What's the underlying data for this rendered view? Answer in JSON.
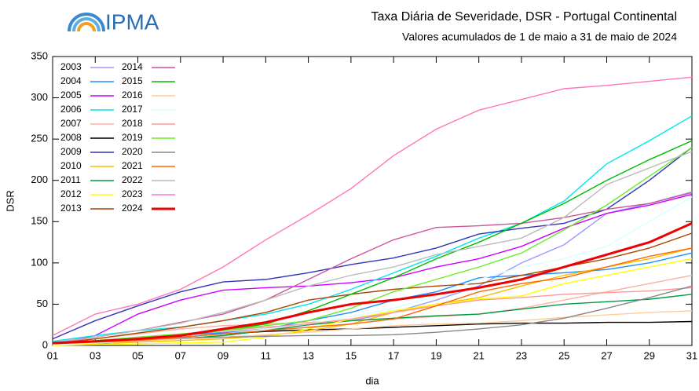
{
  "logo": "IPMA",
  "chart_data": {
    "type": "line",
    "title": "Taxa Diária de Severidade, DSR - Portugal Continental",
    "subtitle": "Valores acumulados de  1 de maio a 31 de maio de 2024",
    "xlabel": "dia",
    "ylabel": "DSR",
    "x": [
      1,
      3,
      5,
      7,
      9,
      11,
      13,
      15,
      17,
      19,
      21,
      23,
      25,
      27,
      29,
      31
    ],
    "xlim": [
      1,
      31
    ],
    "xticks": [
      {
        "value": 1,
        "label": "01"
      },
      {
        "value": 3,
        "label": "03"
      },
      {
        "value": 5,
        "label": "05"
      },
      {
        "value": 7,
        "label": "07"
      },
      {
        "value": 9,
        "label": "09"
      },
      {
        "value": 11,
        "label": "11"
      },
      {
        "value": 13,
        "label": "13"
      },
      {
        "value": 15,
        "label": "15"
      },
      {
        "value": 17,
        "label": "17"
      },
      {
        "value": 19,
        "label": "19"
      },
      {
        "value": 21,
        "label": "21"
      },
      {
        "value": 23,
        "label": "23"
      },
      {
        "value": 25,
        "label": "25"
      },
      {
        "value": 27,
        "label": "27"
      },
      {
        "value": 29,
        "label": "29"
      },
      {
        "value": 31,
        "label": "31"
      }
    ],
    "ylim": [
      0,
      350
    ],
    "yticks": [
      0,
      50,
      100,
      150,
      200,
      250,
      300,
      350
    ],
    "grid": false,
    "series": [
      {
        "name": "2003",
        "color": "#9a9aff",
        "values": [
          2,
          5,
          8,
          12,
          16,
          20,
          25,
          30,
          40,
          55,
          72,
          100,
          122,
          160,
          172,
          186
        ]
      },
      {
        "name": "2004",
        "color": "#1e90ff",
        "values": [
          2,
          5,
          10,
          13,
          15,
          20,
          30,
          40,
          55,
          65,
          82,
          85,
          88,
          92,
          100,
          112
        ]
      },
      {
        "name": "2005",
        "color": "#cc00ff",
        "values": [
          2,
          12,
          38,
          55,
          67,
          70,
          72,
          76,
          82,
          95,
          105,
          120,
          142,
          160,
          170,
          183
        ]
      },
      {
        "name": "2006",
        "color": "#00e5ee",
        "values": [
          5,
          12,
          18,
          22,
          30,
          38,
          50,
          68,
          88,
          108,
          130,
          148,
          175,
          220,
          248,
          278
        ]
      },
      {
        "name": "2007",
        "color": "#ffb0a0",
        "values": [
          3,
          8,
          14,
          20,
          24,
          26,
          28,
          30,
          32,
          35,
          38,
          45,
          55,
          65,
          75,
          85
        ]
      },
      {
        "name": "2008",
        "color": "#000000",
        "values": [
          1,
          3,
          6,
          10,
          14,
          17,
          19,
          20,
          22,
          24,
          26,
          27,
          27,
          28,
          28,
          29
        ]
      },
      {
        "name": "2009",
        "color": "#3333bb",
        "values": [
          8,
          30,
          48,
          65,
          77,
          80,
          88,
          98,
          106,
          118,
          135,
          142,
          148,
          165,
          200,
          240
        ]
      },
      {
        "name": "2010",
        "color": "#ffbb00",
        "values": [
          1,
          2,
          4,
          6,
          8,
          12,
          18,
          26,
          40,
          50,
          58,
          72,
          85,
          95,
          105,
          118
        ]
      },
      {
        "name": "2011",
        "color": "#009944",
        "values": [
          2,
          4,
          6,
          8,
          12,
          18,
          25,
          30,
          33,
          36,
          38,
          44,
          50,
          53,
          56,
          62
        ]
      },
      {
        "name": "2012",
        "color": "#ffff00",
        "values": [
          0,
          1,
          2,
          3,
          4,
          10,
          20,
          32,
          42,
          50,
          56,
          60,
          75,
          85,
          95,
          105
        ]
      },
      {
        "name": "2013",
        "color": "#aa4400",
        "values": [
          2,
          8,
          15,
          22,
          30,
          40,
          55,
          62,
          68,
          72,
          75,
          85,
          95,
          105,
          118,
          136
        ]
      },
      {
        "name": "2014",
        "color": "#cc5599",
        "values": [
          3,
          10,
          18,
          28,
          38,
          55,
          80,
          105,
          128,
          143,
          145,
          148,
          155,
          165,
          172,
          185
        ]
      },
      {
        "name": "2015",
        "color": "#00bb00",
        "values": [
          2,
          5,
          8,
          12,
          18,
          26,
          42,
          62,
          82,
          105,
          125,
          148,
          172,
          200,
          225,
          248
        ]
      },
      {
        "name": "2016",
        "color": "#ffcc99",
        "values": [
          1,
          3,
          5,
          8,
          10,
          13,
          16,
          20,
          24,
          26,
          27,
          30,
          34,
          37,
          40,
          42
        ]
      },
      {
        "name": "2017",
        "color": "#d8ffff",
        "values": [
          1,
          3,
          6,
          10,
          14,
          20,
          26,
          35,
          45,
          60,
          80,
          95,
          105,
          120,
          150,
          180
        ]
      },
      {
        "name": "2018",
        "color": "#ff9999",
        "values": [
          2,
          5,
          10,
          14,
          18,
          22,
          26,
          32,
          40,
          48,
          55,
          58,
          62,
          64,
          66,
          70
        ]
      },
      {
        "name": "2019",
        "color": "#66ee22",
        "values": [
          2,
          6,
          10,
          14,
          18,
          24,
          30,
          45,
          65,
          80,
          95,
          112,
          140,
          170,
          205,
          240
        ]
      },
      {
        "name": "2020",
        "color": "#888888",
        "values": [
          3,
          5,
          7,
          9,
          10,
          11,
          12,
          12,
          13,
          16,
          20,
          25,
          33,
          45,
          58,
          72
        ]
      },
      {
        "name": "2021",
        "color": "#ff6600",
        "values": [
          2,
          4,
          6,
          10,
          14,
          18,
          22,
          26,
          32,
          48,
          65,
          75,
          82,
          95,
          108,
          118
        ]
      },
      {
        "name": "2022",
        "color": "#bbbbbb",
        "values": [
          4,
          10,
          18,
          27,
          40,
          55,
          72,
          85,
          95,
          110,
          120,
          130,
          155,
          195,
          215,
          235
        ]
      },
      {
        "name": "2023",
        "color": "#ff77bb",
        "values": [
          12,
          38,
          50,
          68,
          95,
          128,
          158,
          190,
          230,
          262,
          285,
          298,
          311,
          315,
          320,
          325
        ]
      },
      {
        "name": "2024",
        "color": "#ee0000",
        "values": [
          3,
          5,
          8,
          12,
          20,
          28,
          40,
          50,
          55,
          62,
          70,
          80,
          95,
          110,
          125,
          148
        ]
      }
    ]
  }
}
